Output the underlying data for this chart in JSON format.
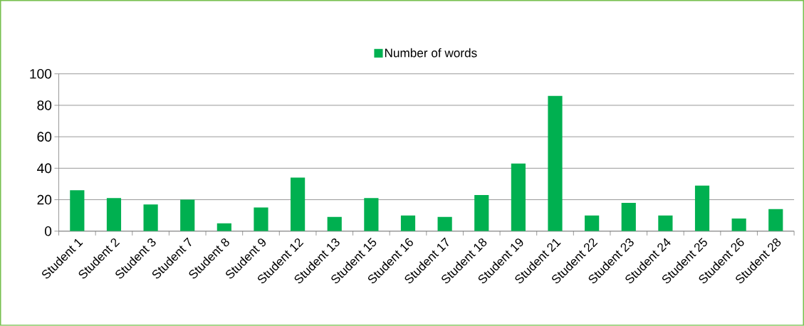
{
  "chart_data": {
    "type": "bar",
    "categories": [
      "Student 1",
      "Student 2",
      "Student 3",
      "Student 7",
      "Student 8",
      "Student 9",
      "Student 12",
      "Student 13",
      "Student 15",
      "Student 16",
      "Student 17",
      "Student 18",
      "Student 19",
      "Student 21",
      "Student 22",
      "Student 23",
      "Student 24",
      "Student 25",
      "Student 26",
      "Student 28"
    ],
    "series": [
      {
        "name": "Number of words",
        "color": "#00b050",
        "values": [
          26,
          21,
          17,
          20,
          5,
          15,
          34,
          9,
          21,
          10,
          9,
          23,
          43,
          86,
          10,
          18,
          10,
          29,
          8,
          14
        ]
      }
    ],
    "ylim": [
      0,
      100
    ],
    "yticks": [
      0,
      20,
      40,
      60,
      80,
      100
    ],
    "grid": "y",
    "legend": "top"
  }
}
